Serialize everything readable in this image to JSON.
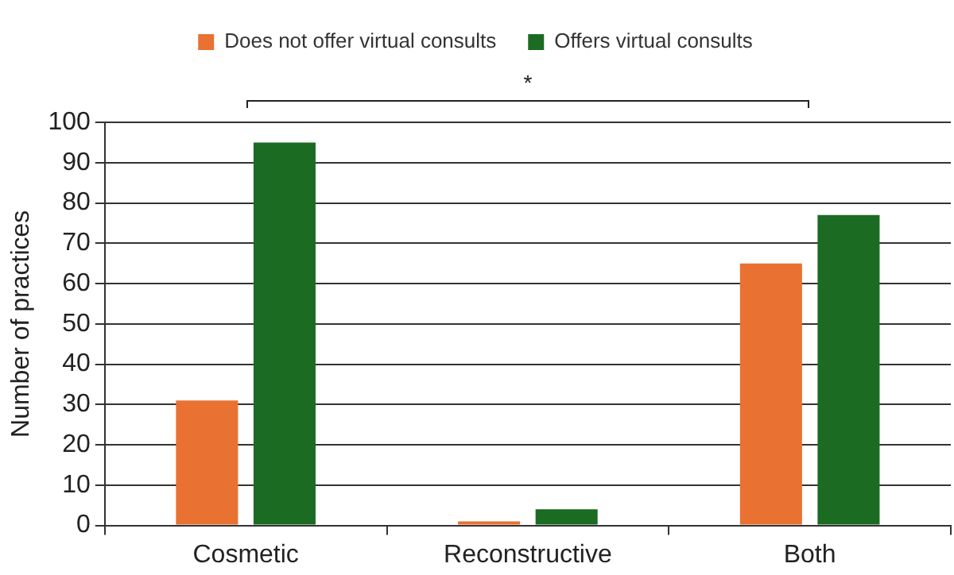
{
  "chart_data": {
    "type": "bar",
    "ylabel": "Number of practices",
    "categories": [
      "Cosmetic",
      "Reconstructive",
      "Both"
    ],
    "series": [
      {
        "name": "Does not offer virtual consults",
        "color": "#e97132",
        "values": [
          31,
          1,
          65
        ]
      },
      {
        "name": "Offers virtual consults",
        "color": "#1b6b22",
        "values": [
          95,
          4,
          77
        ]
      }
    ],
    "ylim": [
      0,
      100
    ],
    "yticks": [
      0,
      10,
      20,
      30,
      40,
      50,
      60,
      70,
      80,
      90,
      100
    ],
    "grid": "y",
    "legend": "top",
    "annotations": [
      "*"
    ]
  }
}
